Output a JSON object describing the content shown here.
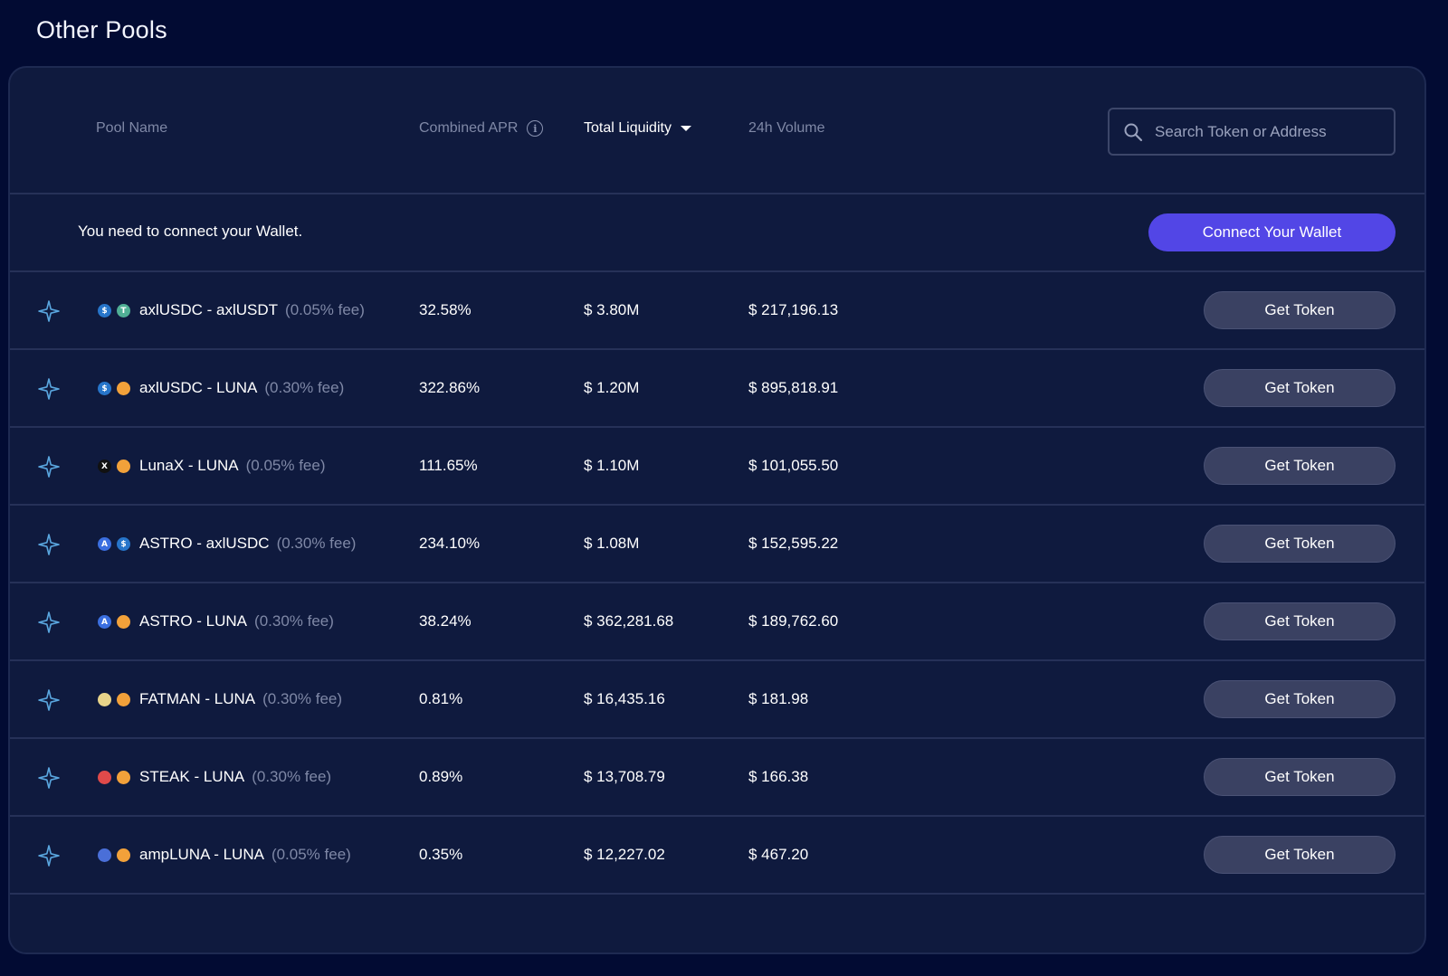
{
  "page": {
    "title": "Other Pools"
  },
  "table_header": {
    "pool_name": "Pool Name",
    "combined_apr": "Combined APR",
    "total_liquidity": "Total Liquidity",
    "volume_24h": "24h Volume",
    "sort_active": "total_liquidity"
  },
  "search": {
    "placeholder": "Search Token or Address",
    "value": ""
  },
  "wallet": {
    "message": "You need to connect your Wallet.",
    "connect_label": "Connect Your Wallet"
  },
  "colors": {
    "accent": "#5246e6",
    "background": "#020b33",
    "panel": "#0f1a3e"
  },
  "pools": [
    {
      "name": "axlUSDC - axlUSDT",
      "fee": "(0.05% fee)",
      "apr": "32.58%",
      "liquidity": "$ 3.80M",
      "volume": "$ 217,196.13",
      "button": "Get Token",
      "tokens": [
        {
          "icon": "axlusdc-icon",
          "glyph": "$",
          "bg": "#2775ca",
          "fg": "#ffffff"
        },
        {
          "icon": "axlusdt-icon",
          "glyph": "T",
          "bg": "#50af95",
          "fg": "#ffffff"
        }
      ]
    },
    {
      "name": "axlUSDC - LUNA",
      "fee": "(0.30% fee)",
      "apr": "322.86%",
      "liquidity": "$ 1.20M",
      "volume": "$ 895,818.91",
      "button": "Get Token",
      "tokens": [
        {
          "icon": "axlusdc-icon",
          "glyph": "$",
          "bg": "#2775ca",
          "fg": "#ffffff"
        },
        {
          "icon": "luna-icon",
          "glyph": "",
          "bg": "#f2a13a",
          "fg": "#ffffff"
        }
      ]
    },
    {
      "name": "LunaX - LUNA",
      "fee": "(0.05% fee)",
      "apr": "111.65%",
      "liquidity": "$ 1.10M",
      "volume": "$ 101,055.50",
      "button": "Get Token",
      "tokens": [
        {
          "icon": "lunax-icon",
          "glyph": "X",
          "bg": "#111111",
          "fg": "#ffffff"
        },
        {
          "icon": "luna-icon",
          "glyph": "",
          "bg": "#f2a13a",
          "fg": "#ffffff"
        }
      ]
    },
    {
      "name": "ASTRO - axlUSDC",
      "fee": "(0.30% fee)",
      "apr": "234.10%",
      "liquidity": "$ 1.08M",
      "volume": "$ 152,595.22",
      "button": "Get Token",
      "tokens": [
        {
          "icon": "astro-icon",
          "glyph": "A",
          "bg": "#3b6fe0",
          "fg": "#ffffff"
        },
        {
          "icon": "axlusdc-icon",
          "glyph": "$",
          "bg": "#2775ca",
          "fg": "#ffffff"
        }
      ]
    },
    {
      "name": "ASTRO - LUNA",
      "fee": "(0.30% fee)",
      "apr": "38.24%",
      "liquidity": "$ 362,281.68",
      "volume": "$ 189,762.60",
      "button": "Get Token",
      "tokens": [
        {
          "icon": "astro-icon",
          "glyph": "A",
          "bg": "#3b6fe0",
          "fg": "#ffffff"
        },
        {
          "icon": "luna-icon",
          "glyph": "",
          "bg": "#f2a13a",
          "fg": "#ffffff"
        }
      ]
    },
    {
      "name": "FATMAN - LUNA",
      "fee": "(0.30% fee)",
      "apr": "0.81%",
      "liquidity": "$ 16,435.16",
      "volume": "$ 181.98",
      "button": "Get Token",
      "tokens": [
        {
          "icon": "fatman-icon",
          "glyph": "",
          "bg": "#e8d48a",
          "fg": "#ffffff"
        },
        {
          "icon": "luna-icon",
          "glyph": "",
          "bg": "#f2a13a",
          "fg": "#ffffff"
        }
      ]
    },
    {
      "name": "STEAK - LUNA",
      "fee": "(0.30% fee)",
      "apr": "0.89%",
      "liquidity": "$ 13,708.79",
      "volume": "$ 166.38",
      "button": "Get Token",
      "tokens": [
        {
          "icon": "steak-icon",
          "glyph": "",
          "bg": "#e04a4a",
          "fg": "#ffffff"
        },
        {
          "icon": "luna-icon",
          "glyph": "",
          "bg": "#f2a13a",
          "fg": "#ffffff"
        }
      ]
    },
    {
      "name": "ampLUNA - LUNA",
      "fee": "(0.05% fee)",
      "apr": "0.35%",
      "liquidity": "$ 12,227.02",
      "volume": "$ 467.20",
      "button": "Get Token",
      "tokens": [
        {
          "icon": "ampluna-icon",
          "glyph": "",
          "bg": "#4a6fd8",
          "fg": "#ffffff"
        },
        {
          "icon": "luna-icon",
          "glyph": "",
          "bg": "#f2a13a",
          "fg": "#ffffff"
        }
      ]
    }
  ]
}
